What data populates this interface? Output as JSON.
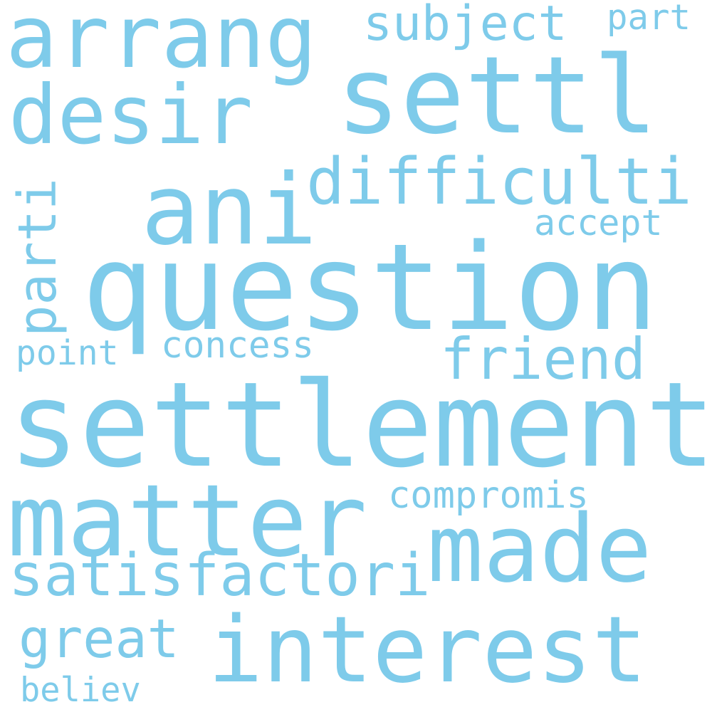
{
  "color": "#7ecbea",
  "words": [
    {
      "text": "question"
    },
    {
      "text": "settlement"
    },
    {
      "text": "matter"
    },
    {
      "text": "interest"
    },
    {
      "text": "settl"
    },
    {
      "text": "ani"
    },
    {
      "text": "made"
    },
    {
      "text": "arrang"
    },
    {
      "text": "desir"
    },
    {
      "text": "difficulti"
    },
    {
      "text": "satisfactori"
    },
    {
      "text": "friend"
    },
    {
      "text": "parti"
    },
    {
      "text": "great"
    },
    {
      "text": "subject"
    },
    {
      "text": "concess"
    },
    {
      "text": "compromis"
    },
    {
      "text": "point"
    },
    {
      "text": "accept"
    },
    {
      "text": "part"
    },
    {
      "text": "believ"
    }
  ]
}
